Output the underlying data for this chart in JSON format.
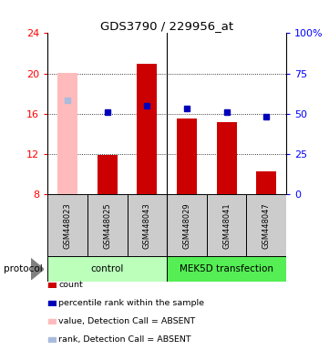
{
  "title": "GDS3790 / 229956_at",
  "samples": [
    "GSM448023",
    "GSM448025",
    "GSM448043",
    "GSM448029",
    "GSM448041",
    "GSM448047"
  ],
  "bar_values": [
    20.1,
    11.9,
    21.0,
    15.5,
    15.2,
    10.3
  ],
  "bar_absent": [
    true,
    false,
    false,
    false,
    false,
    false
  ],
  "percentile_values": [
    17.3,
    16.2,
    16.8,
    16.5,
    16.2,
    15.7
  ],
  "percentile_absent": [
    true,
    false,
    false,
    false,
    false,
    false
  ],
  "ymin": 8,
  "ymax": 24,
  "yticks_left": [
    8,
    12,
    16,
    20,
    24
  ],
  "yticks_right_vals": [
    0,
    25,
    50,
    75,
    100
  ],
  "yticks_right_labels": [
    "0",
    "25",
    "50",
    "75",
    "100%"
  ],
  "bar_color_normal": "#cc0000",
  "bar_color_absent": "#ffbbbb",
  "dot_color_normal": "#0000bb",
  "dot_color_absent": "#aabbdd",
  "group_defs": [
    {
      "name": "control",
      "xmin": -0.5,
      "xmax": 2.5,
      "color": "#bbffbb"
    },
    {
      "name": "MEK5D transfection",
      "xmin": 2.5,
      "xmax": 5.5,
      "color": "#55ee55"
    }
  ],
  "legend_labels": [
    "count",
    "percentile rank within the sample",
    "value, Detection Call = ABSENT",
    "rank, Detection Call = ABSENT"
  ],
  "legend_colors": [
    "#cc0000",
    "#0000bb",
    "#ffbbbb",
    "#aabbdd"
  ],
  "sample_box_color": "#cccccc",
  "divider_x": 2.5,
  "bar_width": 0.5
}
